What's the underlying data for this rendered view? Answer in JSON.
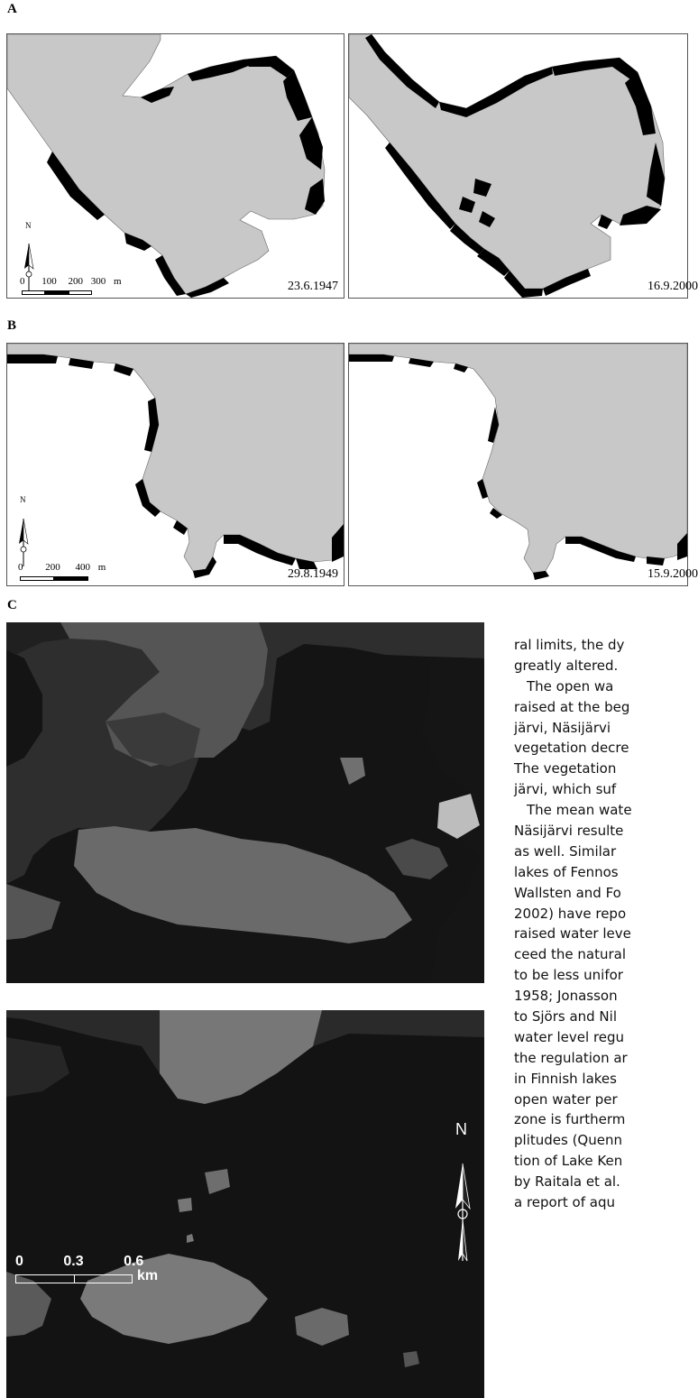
{
  "figure": {
    "panels": {
      "a_label": "A",
      "b_label": "B",
      "c_label": "C"
    },
    "panel_a": {
      "left_date": "23.6.1947",
      "right_date": "16.9.2000",
      "north": "N",
      "scale_ticks": [
        "0",
        "100",
        "200",
        "300"
      ],
      "scale_unit": "m"
    },
    "panel_b": {
      "left_date": "29.8.1949",
      "right_date": "15.9.2000",
      "north": "N",
      "scale_ticks": [
        "0",
        "200",
        "400"
      ],
      "scale_unit": "m"
    },
    "panel_c": {
      "north": "N",
      "scale_ticks": [
        "0",
        "0.3",
        "0.6"
      ],
      "scale_unit": "km"
    }
  },
  "body_text": {
    "lines": [
      "ral limits, the dy",
      "greatly altered.",
      "The open wa",
      "raised at the beg",
      "järvi, Näsijärvi",
      "vegetation decre",
      "The vegetation",
      "järvi, which suf",
      "The mean wate",
      "Näsijärvi resulte",
      "as well. Similar",
      "lakes of Fennos",
      "Wallsten and Fo",
      "2002) have repo",
      "raised water leve",
      "ceed the natural",
      "to be less unifor",
      "1958; Jonasson",
      "to Sjörs and Nil",
      "water level regu",
      "the regulation ar",
      "in Finnish lakes",
      "open water per",
      "zone is furtherm",
      "plitudes (Quenn",
      "tion of Lake Ken",
      "by Raitala et al.",
      "a report of aqu"
    ]
  }
}
